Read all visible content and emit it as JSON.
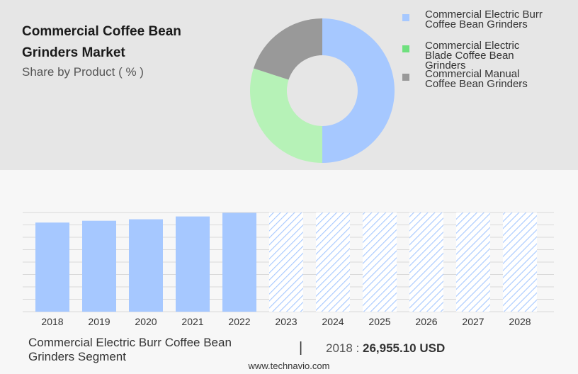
{
  "header": {
    "title_line1": "Commercial Coffee Bean",
    "title_line2": "Grinders Market",
    "subtitle": "Share by Product ( % )"
  },
  "legend": [
    {
      "label_line1": "Commercial Electric Burr",
      "label_line2": "Coffee Bean Grinders",
      "label_line3": "",
      "color": "#a6c8ff"
    },
    {
      "label_line1": "Commercial Electric",
      "label_line2": "Blade Coffee Bean",
      "label_line3": "Grinders",
      "color": "#6fe07e"
    },
    {
      "label_line1": "Commercial Manual",
      "label_line2": "Coffee Bean Grinders",
      "label_line3": "",
      "color": "#999999"
    }
  ],
  "chart_data": [
    {
      "type": "pie",
      "style": "donut",
      "categories": [
        "Commercial Electric Burr Coffee Bean Grinders",
        "Commercial Electric Blade Coffee Bean Grinders",
        "Commercial Manual Coffee Bean Grinders"
      ],
      "values": [
        50,
        30,
        20
      ],
      "colors": [
        "#a6c8ff",
        "#b6f2b7",
        "#999999"
      ]
    },
    {
      "type": "bar",
      "categories": [
        "2018",
        "2019",
        "2020",
        "2021",
        "2022",
        "2023",
        "2024",
        "2025",
        "2026",
        "2027",
        "2028"
      ],
      "values": [
        26955.1,
        27500,
        27950,
        28800,
        29900,
        null,
        null,
        null,
        null,
        null,
        null
      ],
      "forecast_categories": [
        "2023",
        "2024",
        "2025",
        "2026",
        "2027",
        "2028"
      ],
      "ylim": [
        0,
        30000
      ],
      "grid": true,
      "bar_color": "#a6c8ff"
    }
  ],
  "segment": {
    "label_line1": "Commercial Electric Burr Coffee Bean",
    "label_line2": "Grinders Segment",
    "divider": "|",
    "year_text": "2018 :",
    "value_text": "26,955.10 USD"
  },
  "footer": {
    "text": "www.technavio.com"
  }
}
